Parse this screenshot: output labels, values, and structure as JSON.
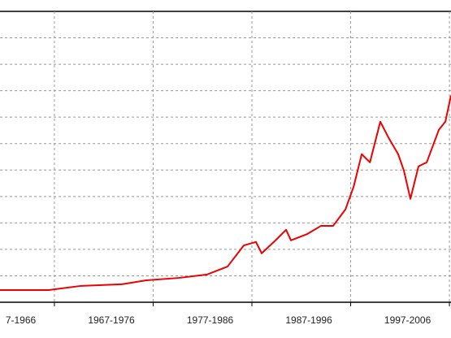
{
  "chart_data": {
    "type": "line",
    "x": [
      1961.49,
      1966.42,
      1969.72,
      1973.83,
      1976.3,
      1979.59,
      1982.47,
      1984.53,
      1986.18,
      1987.41,
      1987.99,
      1989.47,
      1990.46,
      1990.95,
      1992.6,
      1994.0,
      1995.23,
      1996.47,
      1997.3,
      1998.12,
      1998.95,
      2000.0,
      2000.84,
      2001.81,
      2002.39,
      2003.05,
      2003.87,
      2004.7,
      2005.93,
      2006.59,
      2007.16
    ],
    "series": [
      {
        "color": "#ee0000",
        "values": [
          0.46,
          0.46,
          0.62,
          0.68,
          0.83,
          0.92,
          1.05,
          1.35,
          2.15,
          2.28,
          1.85,
          2.37,
          2.74,
          2.34,
          2.58,
          2.89,
          2.89,
          3.51,
          4.37,
          5.6,
          5.29,
          6.83,
          6.22,
          5.6,
          4.98,
          3.91,
          5.14,
          5.29,
          6.52,
          6.83,
          7.82
        ]
      }
    ],
    "xlim": [
      1961.49,
      2007.16
    ],
    "ylim": [
      0,
      11
    ],
    "xticks": [
      1967,
      1977,
      1987,
      1997,
      2007
    ],
    "yticks": [
      1,
      2,
      3,
      4,
      5,
      6,
      7,
      8,
      9,
      10
    ],
    "xlabels": [
      {
        "value": 1962,
        "label": "7-1966"
      },
      {
        "value": 1972,
        "label": "1967-1976"
      },
      {
        "value": 1982,
        "label": "1977-1986"
      },
      {
        "value": 1992,
        "label": "1987-1996"
      },
      {
        "value": 2002,
        "label": "1997-2006"
      }
    ],
    "grid": true
  }
}
